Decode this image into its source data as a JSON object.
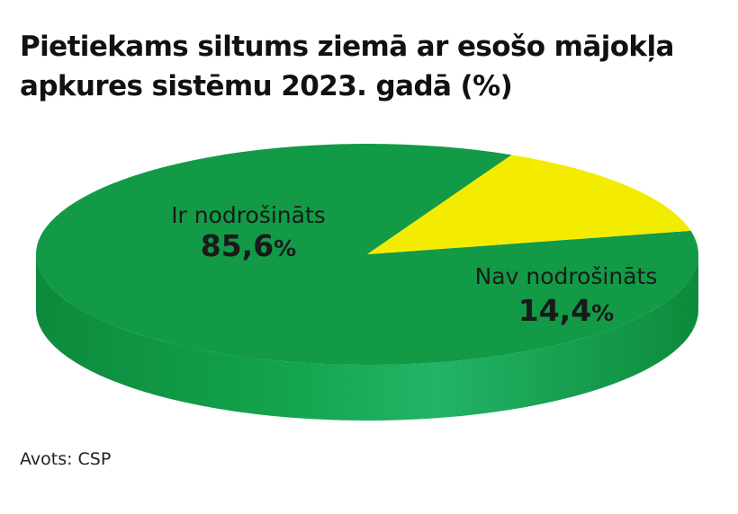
{
  "chart_data": {
    "type": "pie",
    "title": "Pietiekams siltums ziemā ar esošo mājokļa apkures sistēmu 2023. gadā (%)",
    "slices": [
      {
        "label": "Ir nodrošināts",
        "value": 85.6,
        "display_value": "85,6",
        "unit": "%",
        "color": "#129a47"
      },
      {
        "label": "Nav nodrošināts",
        "value": 14.4,
        "display_value": "14,4",
        "unit": "%",
        "color": "#f4ec00"
      }
    ],
    "source": "Avots: CSP"
  }
}
